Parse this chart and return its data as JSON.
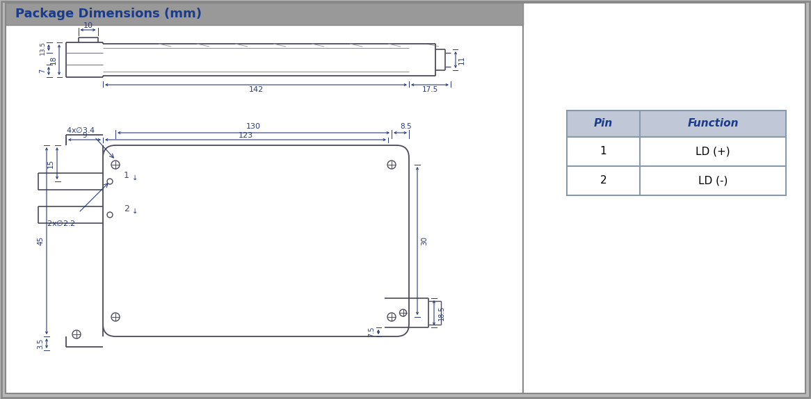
{
  "title": "Package Dimensions (mm)",
  "title_color": "#1a3a8c",
  "title_bg_color": "#999999",
  "border_color": "#888888",
  "drawing_color": "#555566",
  "dim_color": "#2a3a7a",
  "line_color": "#4a4a5a",
  "bg_color": "#ffffff",
  "outer_bg": "#b8b8b8",
  "table_header_bg": "#c0c8d8",
  "table_header_color": "#1a3a8c",
  "table_border_color": "#8899aa",
  "pin_table": {
    "headers": [
      "Pin",
      "Function"
    ],
    "rows": [
      [
        "1",
        "LD (+)"
      ],
      [
        "2",
        "LD (-)"
      ]
    ]
  }
}
